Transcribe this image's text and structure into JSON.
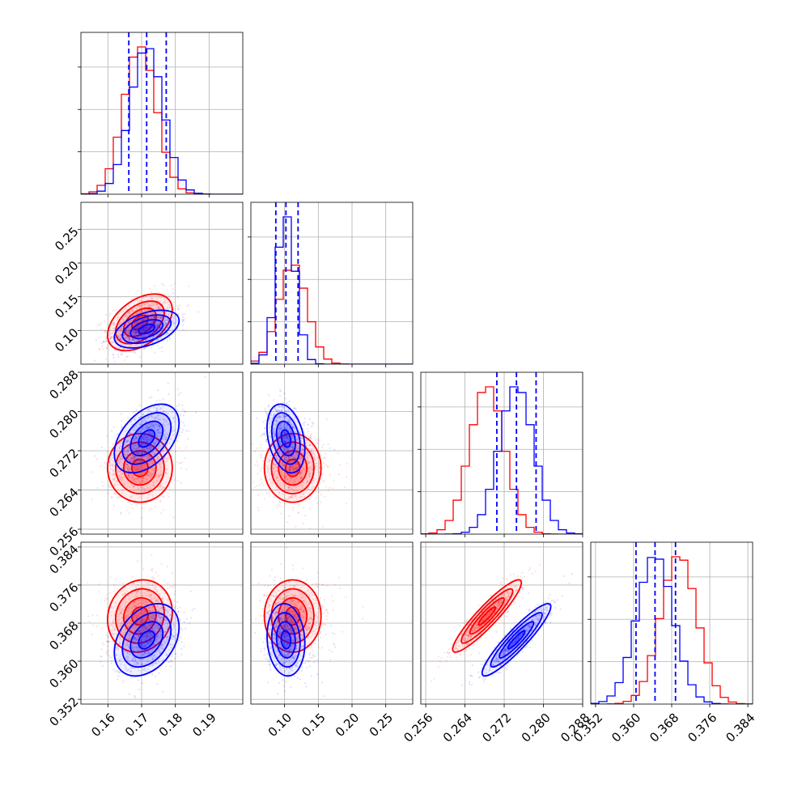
{
  "chart_data": {
    "type": "corner",
    "title": "",
    "grid": true,
    "colors": {
      "red": "#ff0000",
      "blue": "#0000ff"
    },
    "parameters": [
      {
        "range": [
          0.152,
          0.2
        ],
        "ticks": [
          0.16,
          0.17,
          0.18,
          0.19
        ],
        "tick_labels": [
          "0.16",
          "0.17",
          "0.18",
          "0.19"
        ]
      },
      {
        "range": [
          0.05,
          0.29
        ],
        "ticks": [
          0.1,
          0.15,
          0.2,
          0.25
        ],
        "tick_labels": [
          "0.10",
          "0.15",
          "0.20",
          "0.25"
        ]
      },
      {
        "range": [
          0.255,
          0.288
        ],
        "ticks": [
          0.256,
          0.264,
          0.272,
          0.28,
          0.288
        ],
        "tick_labels": [
          "0.256",
          "0.264",
          "0.272",
          "0.280",
          "0.288"
        ]
      },
      {
        "range": [
          0.351,
          0.385
        ],
        "ticks": [
          0.352,
          0.36,
          0.368,
          0.376,
          0.384
        ],
        "tick_labels": [
          "0.352",
          "0.360",
          "0.368",
          "0.376",
          "0.384"
        ]
      }
    ],
    "series": [
      {
        "color": "red",
        "means": [
          0.1695,
          0.112,
          0.2685,
          0.3695
        ],
        "sds": [
          0.0048,
          0.021,
          0.0035,
          0.0038
        ],
        "correlations": {
          "0-1": 0.45,
          "0-2": 0.0,
          "0-3": 0.1,
          "1-2": 0.0,
          "1-3": 0.0,
          "2-3": 0.92
        }
      },
      {
        "color": "blue",
        "means": [
          0.1715,
          0.102,
          0.2745,
          0.3645
        ],
        "sds": [
          0.0048,
          0.014,
          0.0035,
          0.0038
        ],
        "correlations": {
          "0-1": 0.45,
          "0-2": 0.45,
          "0-3": 0.35,
          "1-2": -0.3,
          "1-3": -0.1,
          "2-3": 0.92
        }
      }
    ],
    "quantile_lines": {
      "color": "blue",
      "values": [
        [
          0.1662,
          0.1715,
          0.1773
        ],
        [
          0.087,
          0.102,
          0.12
        ],
        [
          0.2705,
          0.2745,
          0.2785
        ],
        [
          0.3605,
          0.3645,
          0.3688
        ]
      ]
    },
    "contour_levels": [
      0.5,
      1.0,
      1.5,
      2.0
    ]
  }
}
